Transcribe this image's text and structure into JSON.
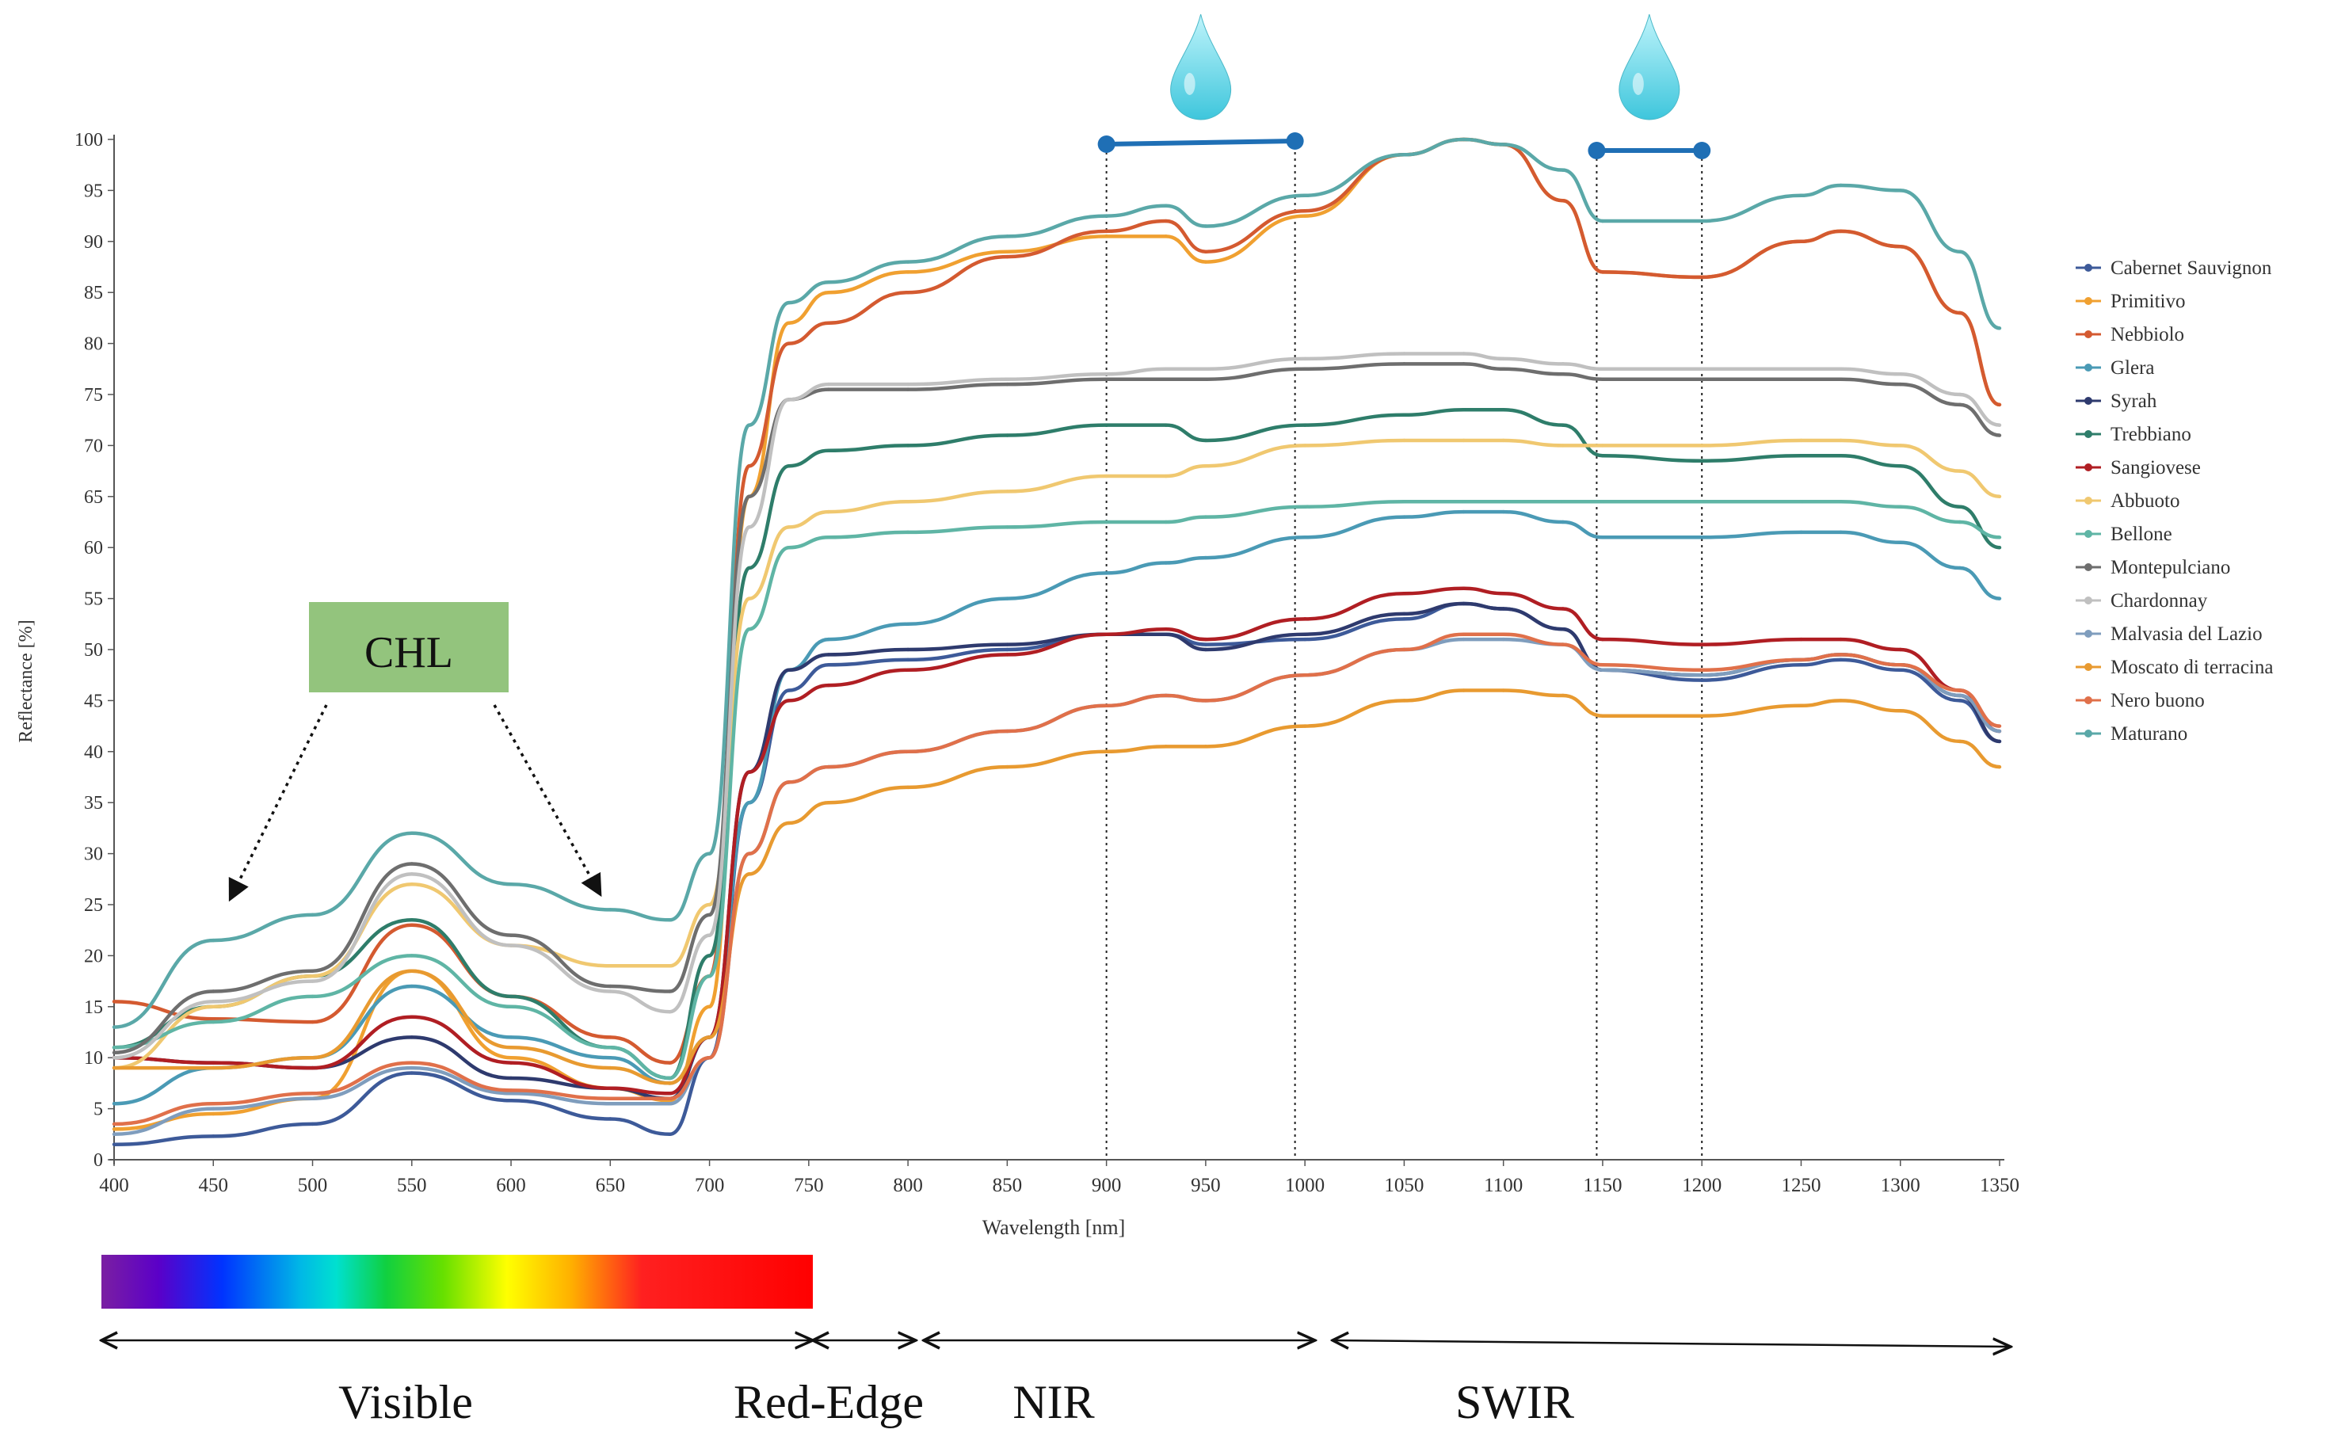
{
  "chart_data": {
    "type": "line",
    "title": "",
    "xlabel": "Wavelength [nm]",
    "ylabel": "Reflectance [%]",
    "xlim": [
      400,
      1350
    ],
    "ylim": [
      0,
      100
    ],
    "x_ticks": [
      400,
      450,
      500,
      550,
      600,
      650,
      700,
      750,
      800,
      850,
      900,
      950,
      1000,
      1050,
      1100,
      1150,
      1200,
      1250,
      1300,
      1350
    ],
    "y_ticks": [
      0,
      5,
      10,
      15,
      20,
      25,
      30,
      35,
      40,
      45,
      50,
      55,
      60,
      65,
      70,
      75,
      80,
      85,
      90,
      95,
      100
    ],
    "grid": false,
    "legend_position": "right",
    "x": [
      400,
      450,
      500,
      550,
      600,
      650,
      680,
      700,
      720,
      740,
      760,
      800,
      850,
      900,
      930,
      950,
      1000,
      1050,
      1080,
      1100,
      1130,
      1150,
      1200,
      1250,
      1270,
      1300,
      1330,
      1350
    ],
    "series": [
      {
        "name": "Cabernet Sauvignon",
        "color": "#3d5a99",
        "values": [
          1.5,
          2.3,
          3.5,
          8.5,
          5.8,
          4.0,
          2.5,
          10.0,
          35.0,
          46.0,
          48.5,
          49.0,
          50.0,
          51.5,
          51.5,
          50.5,
          51.0,
          53.0,
          54.5,
          54.0,
          52.0,
          48.0,
          47.0,
          48.5,
          49.0,
          48.0,
          45.0,
          41.0
        ]
      },
      {
        "name": "Primitivo",
        "color": "#f0a030",
        "values": [
          3.0,
          4.5,
          6.0,
          18.5,
          10.0,
          7.0,
          5.8,
          15.0,
          65.0,
          82.0,
          85.0,
          87.0,
          89.0,
          90.5,
          90.5,
          88.0,
          92.5,
          98.5,
          100.0,
          99.5,
          94.0,
          87.0,
          86.5,
          90.0,
          91.0,
          89.5,
          83.0,
          74.0
        ]
      },
      {
        "name": "Nebbiolo",
        "color": "#d45a30",
        "values": [
          15.5,
          13.8,
          13.5,
          23.0,
          16.0,
          12.0,
          9.5,
          18.0,
          68.0,
          80.0,
          82.0,
          85.0,
          88.5,
          91.0,
          92.0,
          89.0,
          93.0,
          98.5,
          100.0,
          99.5,
          94.0,
          87.0,
          86.5,
          90.0,
          91.0,
          89.5,
          83.0,
          74.0
        ]
      },
      {
        "name": "Glera",
        "color": "#4a9ab5",
        "values": [
          5.5,
          9.0,
          10.0,
          17.0,
          12.0,
          10.0,
          7.5,
          12.0,
          35.0,
          48.0,
          51.0,
          52.5,
          55.0,
          57.5,
          58.5,
          59.0,
          61.0,
          63.0,
          63.5,
          63.5,
          62.5,
          61.0,
          61.0,
          61.5,
          61.5,
          60.5,
          58.0,
          55.0
        ]
      },
      {
        "name": "Syrah",
        "color": "#2e3a6e",
        "values": [
          10.0,
          9.5,
          9.0,
          12.0,
          8.0,
          7.0,
          6.0,
          12.0,
          38.0,
          48.0,
          49.5,
          50.0,
          50.5,
          51.5,
          51.5,
          50.0,
          51.5,
          53.5,
          54.5,
          54.0,
          52.0,
          48.0,
          47.5,
          49.0,
          49.5,
          48.5,
          45.5,
          41.0
        ]
      },
      {
        "name": "Trebbiano",
        "color": "#2e7d6a",
        "values": [
          11.0,
          15.0,
          18.0,
          23.5,
          16.0,
          11.0,
          8.0,
          20.0,
          58.0,
          68.0,
          69.5,
          70.0,
          71.0,
          72.0,
          72.0,
          70.5,
          72.0,
          73.0,
          73.5,
          73.5,
          72.0,
          69.0,
          68.5,
          69.0,
          69.0,
          68.0,
          64.0,
          60.0
        ]
      },
      {
        "name": "Sangiovese",
        "color": "#b01e23",
        "values": [
          10.0,
          9.5,
          9.0,
          14.0,
          9.5,
          7.0,
          6.5,
          12.0,
          38.0,
          45.0,
          46.5,
          48.0,
          49.5,
          51.5,
          52.0,
          51.0,
          53.0,
          55.5,
          56.0,
          55.5,
          54.0,
          51.0,
          50.5,
          51.0,
          51.0,
          50.0,
          46.0,
          42.0
        ]
      },
      {
        "name": "Abbuoto",
        "color": "#f0c870",
        "values": [
          9.0,
          15.0,
          18.0,
          27.0,
          21.0,
          19.0,
          19.0,
          25.0,
          55.0,
          62.0,
          63.5,
          64.5,
          65.5,
          67.0,
          67.0,
          68.0,
          70.0,
          70.5,
          70.5,
          70.5,
          70.0,
          70.0,
          70.0,
          70.5,
          70.5,
          70.0,
          67.5,
          65.0
        ]
      },
      {
        "name": "Bellone",
        "color": "#5fb5a5",
        "values": [
          11.0,
          13.5,
          16.0,
          20.0,
          15.0,
          11.0,
          8.0,
          18.0,
          52.0,
          60.0,
          61.0,
          61.5,
          62.0,
          62.5,
          62.5,
          63.0,
          64.0,
          64.5,
          64.5,
          64.5,
          64.5,
          64.5,
          64.5,
          64.5,
          64.5,
          64.0,
          62.5,
          61.0
        ]
      },
      {
        "name": "Montepulciano",
        "color": "#6e6e6e",
        "values": [
          10.5,
          16.5,
          18.5,
          29.0,
          22.0,
          17.0,
          16.5,
          24.0,
          65.0,
          74.5,
          75.5,
          75.5,
          76.0,
          76.5,
          76.5,
          76.5,
          77.5,
          78.0,
          78.0,
          77.5,
          77.0,
          76.5,
          76.5,
          76.5,
          76.5,
          76.0,
          74.0,
          71.0
        ]
      },
      {
        "name": "Chardonnay",
        "color": "#c0c0c0",
        "values": [
          10.0,
          15.5,
          17.5,
          28.0,
          21.0,
          16.5,
          14.5,
          22.0,
          62.0,
          74.5,
          76.0,
          76.0,
          76.5,
          77.0,
          77.5,
          77.5,
          78.5,
          79.0,
          79.0,
          78.5,
          78.0,
          77.5,
          77.5,
          77.5,
          77.5,
          77.0,
          75.0,
          72.0
        ]
      },
      {
        "name": "Malvasia del Lazio",
        "color": "#7f9dbd",
        "values": [
          2.5,
          5.0,
          6.0,
          9.0,
          6.5,
          5.5,
          5.5,
          10.0,
          30.0,
          37.0,
          38.5,
          40.0,
          42.0,
          44.5,
          45.5,
          45.0,
          47.5,
          50.0,
          51.0,
          51.0,
          50.5,
          48.0,
          47.5,
          49.0,
          49.5,
          48.5,
          45.5,
          42.0
        ]
      },
      {
        "name": "Moscato di terracina",
        "color": "#e89a30",
        "values": [
          9.0,
          9.0,
          10.0,
          18.5,
          11.0,
          9.0,
          7.5,
          12.0,
          28.0,
          33.0,
          35.0,
          36.5,
          38.5,
          40.0,
          40.5,
          40.5,
          42.5,
          45.0,
          46.0,
          46.0,
          45.5,
          43.5,
          43.5,
          44.5,
          45.0,
          44.0,
          41.0,
          38.5
        ]
      },
      {
        "name": "Nero buono",
        "color": "#e0704a",
        "values": [
          3.5,
          5.5,
          6.5,
          9.5,
          6.8,
          6.0,
          6.0,
          10.0,
          30.0,
          37.0,
          38.5,
          40.0,
          42.0,
          44.5,
          45.5,
          45.0,
          47.5,
          50.0,
          51.5,
          51.5,
          50.5,
          48.5,
          48.0,
          49.0,
          49.5,
          48.5,
          46.0,
          42.5
        ]
      },
      {
        "name": "Maturano",
        "color": "#5aa8a8",
        "values": [
          13.0,
          21.5,
          24.0,
          32.0,
          27.0,
          24.5,
          23.5,
          30.0,
          72.0,
          84.0,
          86.0,
          88.0,
          90.5,
          92.5,
          93.5,
          91.5,
          94.5,
          98.5,
          100.0,
          99.5,
          97.0,
          92.0,
          92.0,
          94.5,
          95.5,
          95.0,
          89.0,
          81.5
        ]
      }
    ]
  },
  "annotations": {
    "chl_label": "CHL",
    "chl_color": "#93c47d",
    "water_bands": [
      [
        900,
        995
      ],
      [
        1147,
        1200
      ]
    ],
    "water_color": "#1f6fb5",
    "regions": [
      {
        "label": "Visible",
        "from": 400,
        "to": 750
      },
      {
        "label": "Red-Edge",
        "from": 750,
        "to": 800
      },
      {
        "label": "NIR",
        "from": 800,
        "to": 1000
      },
      {
        "label": "SWIR",
        "from": 1000,
        "to": 1350
      }
    ],
    "spectrum_range": [
      400,
      750
    ]
  }
}
